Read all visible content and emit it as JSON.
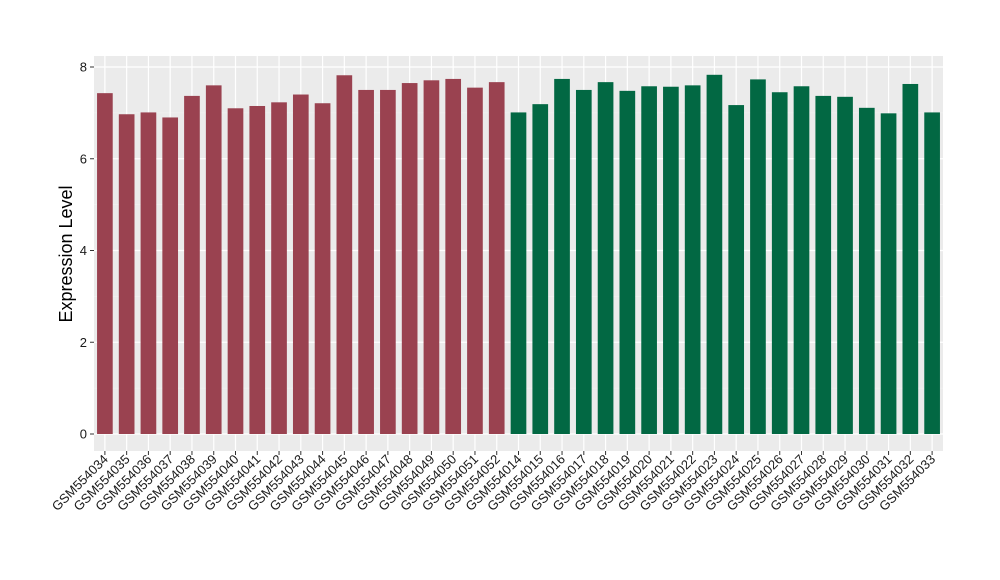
{
  "chart_data": {
    "type": "bar",
    "title": "",
    "xlabel": "",
    "ylabel": "Expression Level",
    "ylim": [
      0,
      8.1
    ],
    "yticks": [
      0,
      2,
      4,
      6,
      8
    ],
    "grid": true,
    "background": "#ebebeb",
    "categories": [
      "GSM554034",
      "GSM554035",
      "GSM554036",
      "GSM554037",
      "GSM554038",
      "GSM554039",
      "GSM554040",
      "GSM554041",
      "GSM554042",
      "GSM554043",
      "GSM554044",
      "GSM554045",
      "GSM554046",
      "GSM554047",
      "GSM554048",
      "GSM554049",
      "GSM554050",
      "GSM554051",
      "GSM554052",
      "GSM554014",
      "GSM554015",
      "GSM554016",
      "GSM554017",
      "GSM554018",
      "GSM554019",
      "GSM554020",
      "GSM554021",
      "GSM554022",
      "GSM554023",
      "GSM554024",
      "GSM554025",
      "GSM554026",
      "GSM554027",
      "GSM554028",
      "GSM554029",
      "GSM554030",
      "GSM554031",
      "GSM554032",
      "GSM554033"
    ],
    "values": [
      7.43,
      6.97,
      7.01,
      6.9,
      7.37,
      7.6,
      7.1,
      7.15,
      7.23,
      7.4,
      7.21,
      7.82,
      7.5,
      7.5,
      7.65,
      7.71,
      7.74,
      7.55,
      7.67,
      7.01,
      7.19,
      7.74,
      7.5,
      7.67,
      7.48,
      7.58,
      7.57,
      7.6,
      7.83,
      7.17,
      7.73,
      7.45,
      7.58,
      7.37,
      7.35,
      7.11,
      6.99,
      7.63,
      7.01
    ],
    "groups": [
      {
        "count": 19,
        "color": "#9a4250"
      },
      {
        "count": 20,
        "color": "#026843"
      }
    ]
  }
}
